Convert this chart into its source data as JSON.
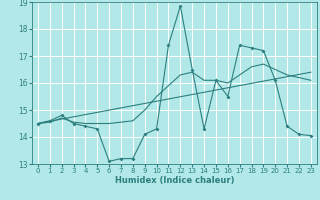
{
  "xlabel": "Humidex (Indice chaleur)",
  "background_color": "#b2e8e8",
  "grid_color": "#ffffff",
  "line_color": "#2d7f7f",
  "xlim": [
    -0.5,
    23.5
  ],
  "ylim": [
    13,
    19
  ],
  "xticks": [
    0,
    1,
    2,
    3,
    4,
    5,
    6,
    7,
    8,
    9,
    10,
    11,
    12,
    13,
    14,
    15,
    16,
    17,
    18,
    19,
    20,
    21,
    22,
    23
  ],
  "yticks": [
    13,
    14,
    15,
    16,
    17,
    18,
    19
  ],
  "line1_x": [
    0,
    1,
    2,
    3,
    4,
    5,
    6,
    7,
    8,
    9,
    10,
    11,
    12,
    13,
    14,
    15,
    16,
    17,
    18,
    19,
    20,
    21,
    22,
    23
  ],
  "line1_y": [
    14.5,
    14.6,
    14.8,
    14.5,
    14.4,
    14.3,
    13.1,
    13.2,
    13.2,
    14.1,
    14.3,
    17.4,
    18.85,
    16.5,
    14.3,
    16.1,
    15.5,
    17.4,
    17.3,
    17.2,
    16.1,
    14.4,
    14.1,
    14.05
  ],
  "line2_x": [
    0,
    23
  ],
  "line2_y": [
    14.5,
    16.4
  ],
  "line3_x": [
    0,
    1,
    2,
    3,
    4,
    5,
    6,
    7,
    8,
    9,
    10,
    11,
    12,
    13,
    14,
    15,
    16,
    17,
    18,
    19,
    20,
    21,
    22,
    23
  ],
  "line3_y": [
    14.5,
    14.55,
    14.7,
    14.55,
    14.5,
    14.5,
    14.5,
    14.55,
    14.6,
    15.0,
    15.5,
    15.9,
    16.3,
    16.4,
    16.1,
    16.1,
    16.0,
    16.3,
    16.6,
    16.7,
    16.5,
    16.3,
    16.2,
    16.1
  ]
}
